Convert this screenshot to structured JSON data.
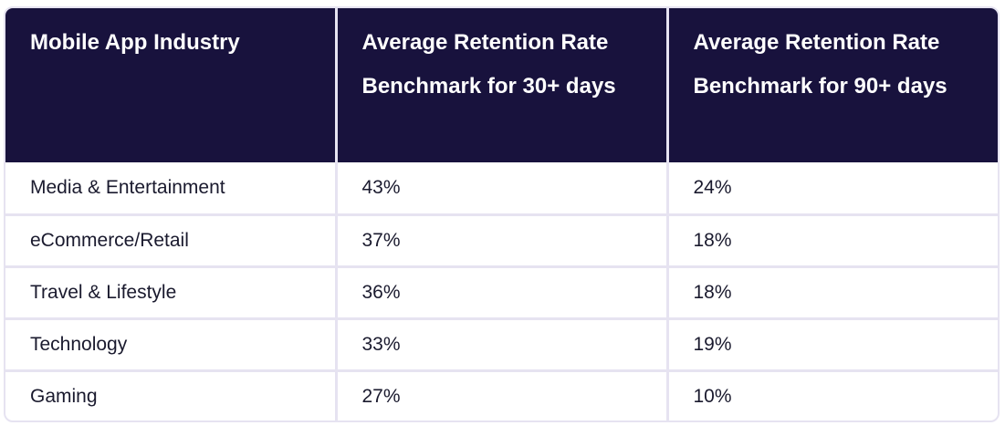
{
  "chart_data": {
    "type": "table",
    "columns": [
      "Mobile App Industry",
      "Average Retention Rate Benchmark for 30+ days",
      "Average Retention Rate Benchmark for 90+ days"
    ],
    "rows": [
      [
        "Media & Entertainment",
        "43%",
        "24%"
      ],
      [
        "eCommerce/Retail",
        "37%",
        "18%"
      ],
      [
        "Travel & Lifestyle",
        "36%",
        "18%"
      ],
      [
        "Technology",
        "33%",
        "19%"
      ],
      [
        "Gaming",
        "27%",
        "10%"
      ]
    ]
  },
  "colors": {
    "header_bg": "#18123d",
    "header_text": "#ffffff",
    "grid_line": "#e6e3f1",
    "body_text": "#1a1a2e"
  }
}
